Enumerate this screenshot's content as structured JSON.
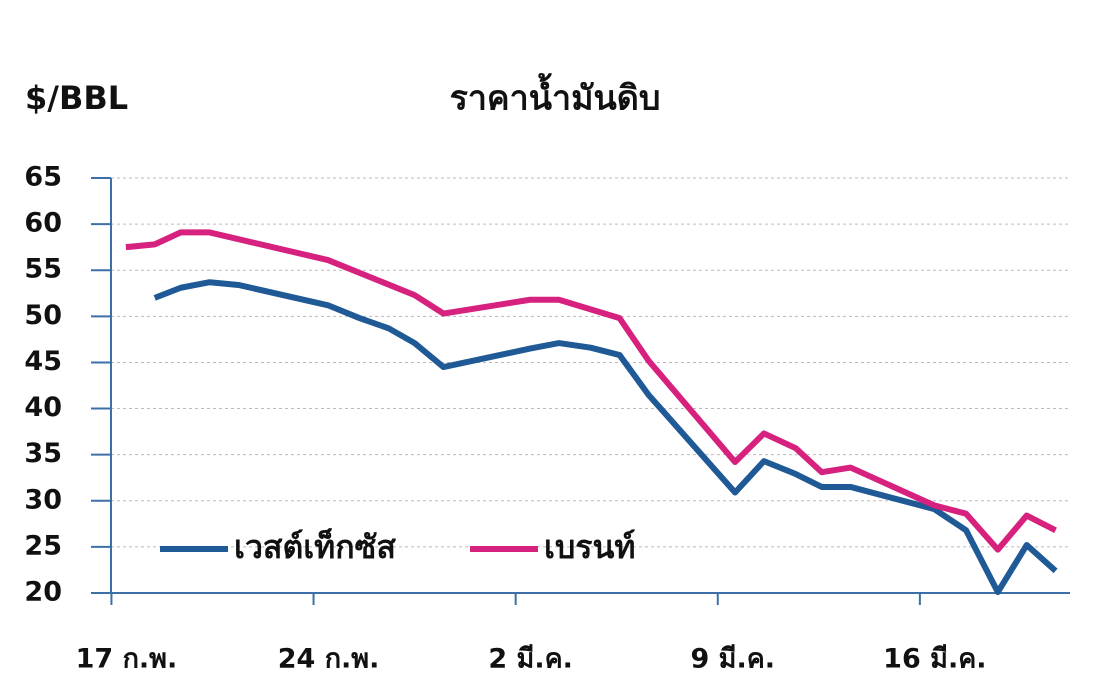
{
  "chart_data": {
    "type": "line",
    "title": "ราคาน้ำมันดิบ",
    "y_label": "$/BBL",
    "xlim": [
      -0.5,
      33.2
    ],
    "xticks": [
      {
        "value": 0,
        "label": "17 ก.พ."
      },
      {
        "value": 7,
        "label": "24 ก.พ."
      },
      {
        "value": 14,
        "label": "2 มี.ค."
      },
      {
        "value": 21,
        "label": "9 มี.ค."
      },
      {
        "value": 28,
        "label": "16 มี.ค."
      }
    ],
    "ylim": [
      20,
      65
    ],
    "yticks": [
      20,
      25,
      30,
      35,
      40,
      45,
      50,
      55,
      60,
      65
    ],
    "grid": true,
    "legend": "lower left",
    "series": [
      {
        "name": "เวสต์เท็กซัส",
        "color": "#1f5a96",
        "x": [
          1.5,
          2.4,
          3.4,
          4.4,
          7.5,
          8.6,
          9.6,
          10.5,
          11.5,
          14.5,
          15.5,
          16.6,
          17.6,
          18.6,
          21.6,
          22.6,
          23.7,
          24.6,
          25.6,
          28.5,
          29.6,
          30.7,
          31.7,
          32.7
        ],
        "values": [
          52.0,
          53.1,
          53.7,
          53.4,
          51.2,
          49.8,
          48.7,
          47.1,
          44.5,
          46.5,
          47.1,
          46.6,
          45.8,
          41.5,
          30.9,
          34.3,
          32.9,
          31.5,
          31.5,
          29.1,
          26.8,
          20.1,
          25.2,
          22.4
        ]
      },
      {
        "name": "เบรนท์",
        "color": "#d6217e",
        "x": [
          0.5,
          1.5,
          2.4,
          3.4,
          7.5,
          10.5,
          11.5,
          14.5,
          15.5,
          17.6,
          18.6,
          21.6,
          22.6,
          23.7,
          24.6,
          25.6,
          28.5,
          29.6,
          30.7,
          31.7,
          32.7
        ],
        "values": [
          57.5,
          57.8,
          59.1,
          59.1,
          56.1,
          52.3,
          50.3,
          51.8,
          51.8,
          49.8,
          45.2,
          34.2,
          37.3,
          35.7,
          33.1,
          33.6,
          29.5,
          28.6,
          24.7,
          28.4,
          26.8
        ]
      }
    ]
  }
}
